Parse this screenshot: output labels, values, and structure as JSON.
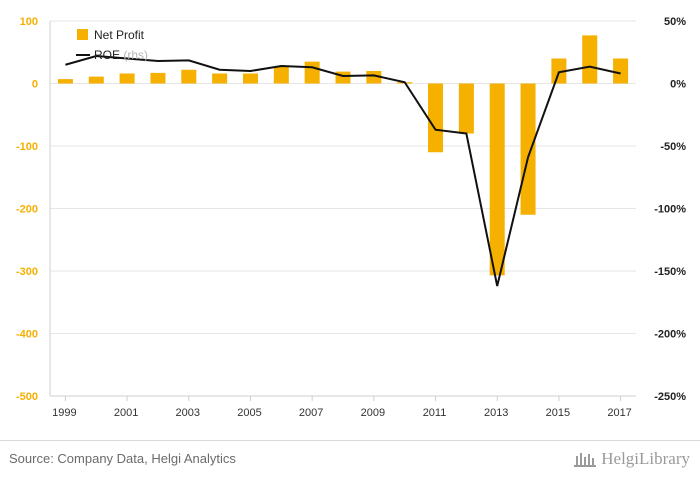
{
  "chart_data": {
    "type": "bar+line",
    "categories": [
      "1999",
      "2000",
      "2001",
      "2002",
      "2003",
      "2004",
      "2005",
      "2006",
      "2007",
      "2008",
      "2009",
      "2010",
      "2011",
      "2012",
      "2013",
      "2014",
      "2015",
      "2016",
      "2017"
    ],
    "x_tick_labels": [
      "1999",
      "2001",
      "2003",
      "2005",
      "2007",
      "2009",
      "2011",
      "2013",
      "2015",
      "2017"
    ],
    "series": [
      {
        "name": "Net Profit",
        "type": "bar",
        "axis": "left",
        "color": "#F5B000",
        "values": [
          7,
          11,
          16,
          17,
          22,
          16,
          16,
          27,
          35,
          19,
          20,
          2,
          -110,
          -80,
          -307,
          -210,
          40,
          77,
          40
        ]
      },
      {
        "name": "ROE",
        "legend_suffix": "(rhs)",
        "type": "line",
        "axis": "right",
        "color": "#111111",
        "values": [
          15,
          22,
          20,
          18,
          18.5,
          11,
          10,
          14,
          13,
          6,
          6.5,
          1,
          -37,
          -40,
          -162,
          -59,
          9,
          13.5,
          8
        ]
      }
    ],
    "y_left": {
      "ticks": [
        100,
        0,
        -100,
        -200,
        -300,
        -400,
        -500
      ],
      "tick_labels": [
        "100",
        "0",
        "-100",
        "-200",
        "-300",
        "-400",
        "-500"
      ],
      "range": [
        -500,
        100
      ],
      "color": "#F5B000"
    },
    "y_right": {
      "ticks": [
        50,
        0,
        -50,
        -100,
        -150,
        -200,
        -250
      ],
      "tick_labels": [
        "50%",
        "0%",
        "-50%",
        "-100%",
        "-150%",
        "-200%",
        "-250%"
      ],
      "range": [
        -250,
        50
      ]
    },
    "grid": true,
    "legend_position": "top-left"
  },
  "footer": {
    "source": "Source: Company Data, Helgi Analytics",
    "brand": "HelgiLibrary"
  }
}
